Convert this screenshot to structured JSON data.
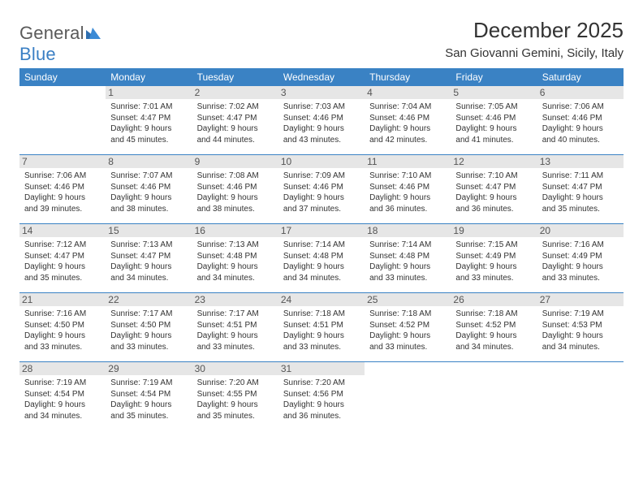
{
  "brand": {
    "part1": "General",
    "part2": "Blue"
  },
  "title": "December 2025",
  "location": "San Giovanni Gemini, Sicily, Italy",
  "colors": {
    "header_bg": "#3a82c4",
    "header_text": "#ffffff",
    "daynum_bg": "#e6e6e6",
    "rule": "#3a82c4",
    "body_text": "#333333",
    "logo_gray": "#5a5a5a",
    "logo_blue": "#3a7fc4"
  },
  "typography": {
    "title_fontsize": 26,
    "location_fontsize": 15,
    "dayheader_fontsize": 12,
    "daynum_fontsize": 12,
    "body_fontsize": 10
  },
  "day_headers": [
    "Sunday",
    "Monday",
    "Tuesday",
    "Wednesday",
    "Thursday",
    "Friday",
    "Saturday"
  ],
  "weeks": [
    [
      {
        "n": "",
        "blank": true
      },
      {
        "n": "1",
        "sunrise": "Sunrise: 7:01 AM",
        "sunset": "Sunset: 4:47 PM",
        "daylight": "Daylight: 9 hours and 45 minutes."
      },
      {
        "n": "2",
        "sunrise": "Sunrise: 7:02 AM",
        "sunset": "Sunset: 4:47 PM",
        "daylight": "Daylight: 9 hours and 44 minutes."
      },
      {
        "n": "3",
        "sunrise": "Sunrise: 7:03 AM",
        "sunset": "Sunset: 4:46 PM",
        "daylight": "Daylight: 9 hours and 43 minutes."
      },
      {
        "n": "4",
        "sunrise": "Sunrise: 7:04 AM",
        "sunset": "Sunset: 4:46 PM",
        "daylight": "Daylight: 9 hours and 42 minutes."
      },
      {
        "n": "5",
        "sunrise": "Sunrise: 7:05 AM",
        "sunset": "Sunset: 4:46 PM",
        "daylight": "Daylight: 9 hours and 41 minutes."
      },
      {
        "n": "6",
        "sunrise": "Sunrise: 7:06 AM",
        "sunset": "Sunset: 4:46 PM",
        "daylight": "Daylight: 9 hours and 40 minutes."
      }
    ],
    [
      {
        "n": "7",
        "sunrise": "Sunrise: 7:06 AM",
        "sunset": "Sunset: 4:46 PM",
        "daylight": "Daylight: 9 hours and 39 minutes."
      },
      {
        "n": "8",
        "sunrise": "Sunrise: 7:07 AM",
        "sunset": "Sunset: 4:46 PM",
        "daylight": "Daylight: 9 hours and 38 minutes."
      },
      {
        "n": "9",
        "sunrise": "Sunrise: 7:08 AM",
        "sunset": "Sunset: 4:46 PM",
        "daylight": "Daylight: 9 hours and 38 minutes."
      },
      {
        "n": "10",
        "sunrise": "Sunrise: 7:09 AM",
        "sunset": "Sunset: 4:46 PM",
        "daylight": "Daylight: 9 hours and 37 minutes."
      },
      {
        "n": "11",
        "sunrise": "Sunrise: 7:10 AM",
        "sunset": "Sunset: 4:46 PM",
        "daylight": "Daylight: 9 hours and 36 minutes."
      },
      {
        "n": "12",
        "sunrise": "Sunrise: 7:10 AM",
        "sunset": "Sunset: 4:47 PM",
        "daylight": "Daylight: 9 hours and 36 minutes."
      },
      {
        "n": "13",
        "sunrise": "Sunrise: 7:11 AM",
        "sunset": "Sunset: 4:47 PM",
        "daylight": "Daylight: 9 hours and 35 minutes."
      }
    ],
    [
      {
        "n": "14",
        "sunrise": "Sunrise: 7:12 AM",
        "sunset": "Sunset: 4:47 PM",
        "daylight": "Daylight: 9 hours and 35 minutes."
      },
      {
        "n": "15",
        "sunrise": "Sunrise: 7:13 AM",
        "sunset": "Sunset: 4:47 PM",
        "daylight": "Daylight: 9 hours and 34 minutes."
      },
      {
        "n": "16",
        "sunrise": "Sunrise: 7:13 AM",
        "sunset": "Sunset: 4:48 PM",
        "daylight": "Daylight: 9 hours and 34 minutes."
      },
      {
        "n": "17",
        "sunrise": "Sunrise: 7:14 AM",
        "sunset": "Sunset: 4:48 PM",
        "daylight": "Daylight: 9 hours and 34 minutes."
      },
      {
        "n": "18",
        "sunrise": "Sunrise: 7:14 AM",
        "sunset": "Sunset: 4:48 PM",
        "daylight": "Daylight: 9 hours and 33 minutes."
      },
      {
        "n": "19",
        "sunrise": "Sunrise: 7:15 AM",
        "sunset": "Sunset: 4:49 PM",
        "daylight": "Daylight: 9 hours and 33 minutes."
      },
      {
        "n": "20",
        "sunrise": "Sunrise: 7:16 AM",
        "sunset": "Sunset: 4:49 PM",
        "daylight": "Daylight: 9 hours and 33 minutes."
      }
    ],
    [
      {
        "n": "21",
        "sunrise": "Sunrise: 7:16 AM",
        "sunset": "Sunset: 4:50 PM",
        "daylight": "Daylight: 9 hours and 33 minutes."
      },
      {
        "n": "22",
        "sunrise": "Sunrise: 7:17 AM",
        "sunset": "Sunset: 4:50 PM",
        "daylight": "Daylight: 9 hours and 33 minutes."
      },
      {
        "n": "23",
        "sunrise": "Sunrise: 7:17 AM",
        "sunset": "Sunset: 4:51 PM",
        "daylight": "Daylight: 9 hours and 33 minutes."
      },
      {
        "n": "24",
        "sunrise": "Sunrise: 7:18 AM",
        "sunset": "Sunset: 4:51 PM",
        "daylight": "Daylight: 9 hours and 33 minutes."
      },
      {
        "n": "25",
        "sunrise": "Sunrise: 7:18 AM",
        "sunset": "Sunset: 4:52 PM",
        "daylight": "Daylight: 9 hours and 33 minutes."
      },
      {
        "n": "26",
        "sunrise": "Sunrise: 7:18 AM",
        "sunset": "Sunset: 4:52 PM",
        "daylight": "Daylight: 9 hours and 34 minutes."
      },
      {
        "n": "27",
        "sunrise": "Sunrise: 7:19 AM",
        "sunset": "Sunset: 4:53 PM",
        "daylight": "Daylight: 9 hours and 34 minutes."
      }
    ],
    [
      {
        "n": "28",
        "sunrise": "Sunrise: 7:19 AM",
        "sunset": "Sunset: 4:54 PM",
        "daylight": "Daylight: 9 hours and 34 minutes."
      },
      {
        "n": "29",
        "sunrise": "Sunrise: 7:19 AM",
        "sunset": "Sunset: 4:54 PM",
        "daylight": "Daylight: 9 hours and 35 minutes."
      },
      {
        "n": "30",
        "sunrise": "Sunrise: 7:20 AM",
        "sunset": "Sunset: 4:55 PM",
        "daylight": "Daylight: 9 hours and 35 minutes."
      },
      {
        "n": "31",
        "sunrise": "Sunrise: 7:20 AM",
        "sunset": "Sunset: 4:56 PM",
        "daylight": "Daylight: 9 hours and 36 minutes."
      },
      {
        "n": "",
        "blank": true
      },
      {
        "n": "",
        "blank": true
      },
      {
        "n": "",
        "blank": true
      }
    ]
  ]
}
